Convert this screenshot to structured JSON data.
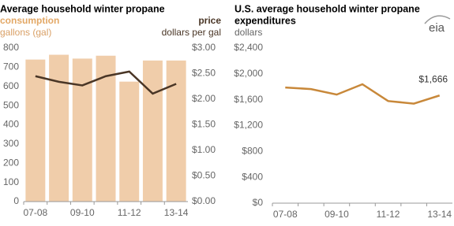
{
  "logo": "eia",
  "chart_data": [
    {
      "type": "bar",
      "title": "Average household winter propane",
      "ylabel": "gallons (gal)",
      "y2label": "dollars per gal",
      "categories": [
        "07-08",
        null,
        "09-10",
        null,
        "11-12",
        null,
        "13-14"
      ],
      "series": [
        {
          "name": "consumption",
          "type": "bar",
          "axis": "y",
          "color": "#f0cdaa",
          "values": [
            740,
            765,
            745,
            760,
            625,
            735,
            735
          ]
        },
        {
          "name": "price",
          "type": "line",
          "axis": "y2",
          "color": "#4a3626",
          "values": [
            2.45,
            2.34,
            2.27,
            2.45,
            2.54,
            2.11,
            2.3
          ]
        }
      ],
      "ylim": [
        0,
        800
      ],
      "yticks": [
        0,
        100,
        200,
        300,
        400,
        500,
        600,
        700,
        800
      ],
      "y2lim": [
        0,
        3
      ],
      "y2ticks": [
        {
          "value": 0,
          "label": "$0.00"
        },
        {
          "value": 0.5,
          "label": "$0.50"
        },
        {
          "value": 1,
          "label": "$1.00"
        },
        {
          "value": 1.5,
          "label": "$1.50"
        },
        {
          "value": 2,
          "label": "$2.00"
        },
        {
          "value": 2.5,
          "label": "$2.50"
        },
        {
          "value": 3,
          "label": "$3.00"
        }
      ]
    },
    {
      "type": "line",
      "title": [
        "U.S. average household winter propane",
        "expenditures"
      ],
      "ylabel": "dollars",
      "categories": [
        "07-08",
        null,
        "09-10",
        null,
        "11-12",
        null,
        "13-14"
      ],
      "series": [
        {
          "color": "#c8883a",
          "values": [
            1790,
            1765,
            1680,
            1840,
            1580,
            1540,
            1666
          ],
          "value_labels": [
            null,
            null,
            null,
            null,
            null,
            null,
            "$1,666"
          ]
        }
      ],
      "ylim": [
        0,
        2400
      ],
      "yticks": [
        {
          "value": 0,
          "label": "$0"
        },
        {
          "value": 400,
          "label": "$400"
        },
        {
          "value": 800,
          "label": "$800"
        },
        {
          "value": 1200,
          "label": "$1,200"
        },
        {
          "value": 1600,
          "label": "$1,600"
        },
        {
          "value": 2000,
          "label": "$2,000"
        },
        {
          "value": 2400,
          "label": "$2,400"
        }
      ]
    }
  ]
}
